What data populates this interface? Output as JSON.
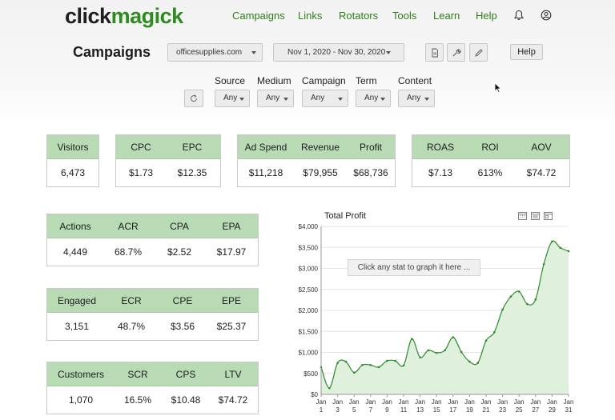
{
  "brand": {
    "logo_part1": "click",
    "logo_part2": "magick"
  },
  "nav": {
    "links": [
      "Campaigns",
      "Links",
      "Rotators",
      "Tools",
      "Learn",
      "Help"
    ],
    "bell_icon": "bell-icon",
    "user_icon": "user-circle-icon"
  },
  "toolbar": {
    "title": "Campaigns",
    "account": "officesupplies.com",
    "date_range": "Nov 1, 2020 - Nov 30, 2020",
    "icons": [
      "document-icon",
      "wrench-icon",
      "pencil-icon"
    ],
    "help_label": "Help"
  },
  "filters": [
    {
      "label": "Source",
      "value": "Any"
    },
    {
      "label": "Medium",
      "value": "Any"
    },
    {
      "label": "Campaign",
      "value": "Any"
    },
    {
      "label": "Term",
      "value": "Any"
    },
    {
      "label": "Content",
      "value": "Any"
    }
  ],
  "stats": {
    "traffic": [
      {
        "label": "Visitors",
        "value": "6,473"
      }
    ],
    "cost": [
      {
        "label": "CPC",
        "value": "$1.73"
      },
      {
        "label": "EPC",
        "value": "$12.35"
      }
    ],
    "money": [
      {
        "label": "Ad Spend",
        "value": "$11,218"
      },
      {
        "label": "Revenue",
        "value": "$79,955"
      },
      {
        "label": "Profit",
        "value": "$68,736"
      }
    ],
    "returns": [
      {
        "label": "ROAS",
        "value": "$7.13"
      },
      {
        "label": "ROI",
        "value": "613%"
      },
      {
        "label": "AOV",
        "value": "$74.72"
      }
    ],
    "actions": [
      {
        "label": "Actions",
        "value": "4,449"
      },
      {
        "label": "ACR",
        "value": "68.7%"
      },
      {
        "label": "CPA",
        "value": "$2.52"
      },
      {
        "label": "EPA",
        "value": "$17.97"
      }
    ],
    "engaged": [
      {
        "label": "Engaged",
        "value": "3,151"
      },
      {
        "label": "ECR",
        "value": "48.7%"
      },
      {
        "label": "CPE",
        "value": "$3.56"
      },
      {
        "label": "EPE",
        "value": "$25.37"
      }
    ],
    "customers": [
      {
        "label": "Customers",
        "value": "1,070"
      },
      {
        "label": "SCR",
        "value": "16.5%"
      },
      {
        "label": "CPS",
        "value": "$10.48"
      },
      {
        "label": "LTV",
        "value": "$74.72"
      }
    ]
  },
  "chart_hint": "Click any stat to graph it here ...",
  "chart_data": {
    "type": "area",
    "title": "Total Profit",
    "x": [
      1,
      2,
      3,
      4,
      5,
      6,
      7,
      8,
      9,
      10,
      11,
      12,
      13,
      14,
      15,
      16,
      17,
      18,
      19,
      20,
      21,
      22,
      23,
      24,
      25,
      26,
      27,
      28,
      29,
      30,
      31
    ],
    "x_tick_labels": [
      {
        "day": 1,
        "month": "Jan",
        "label": "1"
      },
      {
        "day": 3,
        "month": "Jan",
        "label": "3"
      },
      {
        "day": 5,
        "month": "Jan",
        "label": "5"
      },
      {
        "day": 7,
        "month": "Jan",
        "label": "7"
      },
      {
        "day": 9,
        "month": "Jan",
        "label": "9"
      },
      {
        "day": 11,
        "month": "Jan",
        "label": "11"
      },
      {
        "day": 13,
        "month": "Jan",
        "label": "13"
      },
      {
        "day": 15,
        "month": "Jan",
        "label": "15"
      },
      {
        "day": 17,
        "month": "Jan",
        "label": "17"
      },
      {
        "day": 19,
        "month": "Jan",
        "label": "19"
      },
      {
        "day": 21,
        "month": "Jan",
        "label": "21"
      },
      {
        "day": 23,
        "month": "Jan",
        "label": "23"
      },
      {
        "day": 25,
        "month": "Jan",
        "label": "25"
      },
      {
        "day": 27,
        "month": "Jan",
        "label": "27"
      },
      {
        "day": 29,
        "month": "Jan",
        "label": "29"
      },
      {
        "day": 31,
        "month": "Jan",
        "label": "31"
      }
    ],
    "values": [
      650,
      150,
      750,
      780,
      520,
      700,
      700,
      650,
      800,
      800,
      690,
      1320,
      880,
      1050,
      990,
      1050,
      1360,
      1010,
      780,
      750,
      1280,
      1480,
      2020,
      2330,
      2450,
      2150,
      2260,
      3100,
      3640,
      3490,
      3410
    ],
    "y_ticks": [
      "$0",
      "$500",
      "$1,000",
      "$1,500",
      "$2,000",
      "$2,500",
      "$3,000",
      "$3,500",
      "$4,000"
    ],
    "ylim": [
      0,
      4000
    ],
    "grid": true,
    "line_color": "#2e8b2e",
    "fill_color": "#dff0dc",
    "chart_icons": [
      "calendar-day-icon",
      "calendar-week-icon",
      "calendar-month-icon"
    ]
  }
}
